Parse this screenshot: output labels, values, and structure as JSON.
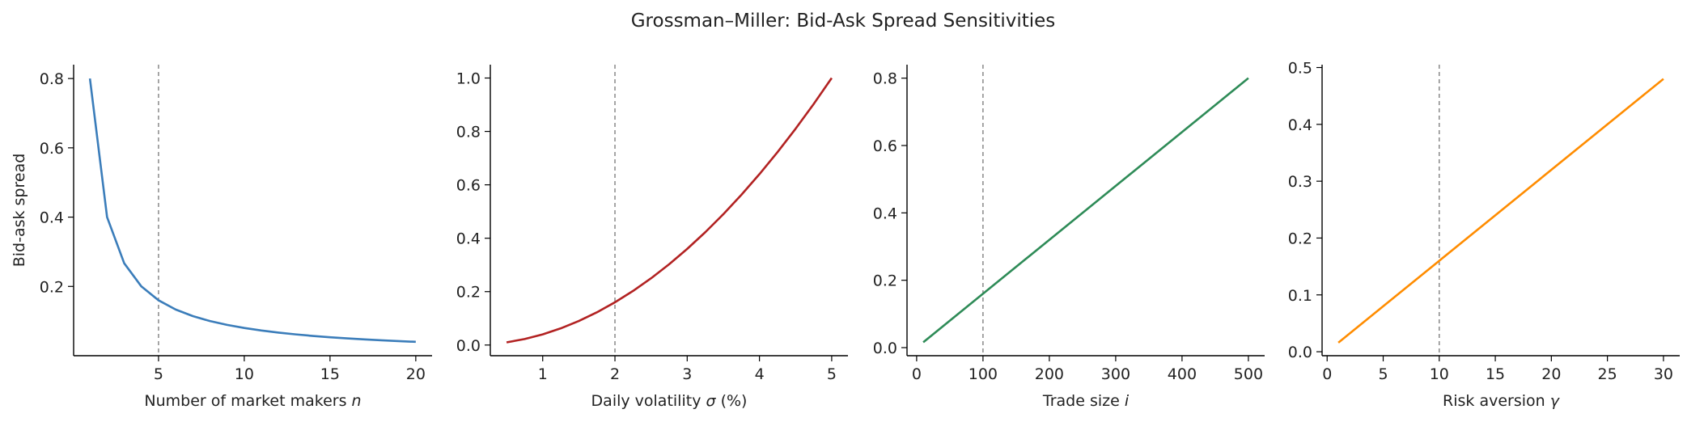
{
  "title": "Grossman–Miller: Bid-Ask Spread Sensitivities",
  "chart_data": [
    {
      "type": "line",
      "xlabel": "Number of market makers ",
      "xlabel_symbol": "n",
      "xlabel_suffix": "",
      "ylabel": "Bid-ask spread",
      "xlim": [
        0.05,
        20.95
      ],
      "ylim": [
        0.0,
        0.84
      ],
      "xticks": [
        5,
        10,
        15,
        20
      ],
      "yticks": [
        0.2,
        0.4,
        0.6,
        0.8
      ],
      "ref_x": 5,
      "color": "#3b7dba",
      "x": [
        1,
        2,
        3,
        4,
        5,
        6,
        7,
        8,
        9,
        10,
        11,
        12,
        13,
        14,
        15,
        16,
        17,
        18,
        19,
        20
      ],
      "y": [
        0.8,
        0.4,
        0.2667,
        0.2,
        0.16,
        0.1333,
        0.1143,
        0.1,
        0.0889,
        0.08,
        0.0727,
        0.0667,
        0.0615,
        0.0571,
        0.0533,
        0.05,
        0.0471,
        0.0444,
        0.0421,
        0.04
      ]
    },
    {
      "type": "line",
      "xlabel": "Daily volatility ",
      "xlabel_symbol": "σ",
      "xlabel_suffix": " (%)",
      "ylabel": "",
      "xlim": [
        0.275,
        5.225
      ],
      "ylim": [
        -0.04,
        1.05
      ],
      "xticks": [
        1,
        2,
        3,
        4,
        5
      ],
      "yticks": [
        0.0,
        0.2,
        0.4,
        0.6,
        0.8,
        1.0
      ],
      "ref_x": 2,
      "color": "#b22222",
      "x": [
        0.5,
        0.75,
        1.0,
        1.25,
        1.5,
        1.75,
        2.0,
        2.25,
        2.5,
        2.75,
        3.0,
        3.25,
        3.5,
        3.75,
        4.0,
        4.25,
        4.5,
        4.75,
        5.0
      ],
      "y": [
        0.01,
        0.0225,
        0.04,
        0.0625,
        0.09,
        0.1225,
        0.16,
        0.2025,
        0.25,
        0.3025,
        0.36,
        0.4225,
        0.49,
        0.5625,
        0.64,
        0.7225,
        0.81,
        0.9025,
        1.0
      ]
    },
    {
      "type": "line",
      "xlabel": "Trade size ",
      "xlabel_symbol": "i",
      "xlabel_suffix": "",
      "ylabel": "",
      "xlim": [
        -14.5,
        524.5
      ],
      "ylim": [
        -0.024,
        0.84
      ],
      "xticks": [
        0,
        100,
        200,
        300,
        400,
        500
      ],
      "yticks": [
        0.0,
        0.2,
        0.4,
        0.6,
        0.8
      ],
      "ref_x": 100,
      "color": "#2e8b57",
      "x": [
        10,
        500
      ],
      "y": [
        0.016,
        0.8
      ]
    },
    {
      "type": "line",
      "xlabel": "Risk aversion ",
      "xlabel_symbol": "γ",
      "xlabel_suffix": "",
      "ylabel": "",
      "xlim": [
        -0.45,
        31.45
      ],
      "ylim": [
        -0.007,
        0.505
      ],
      "xticks": [
        0,
        5,
        10,
        15,
        20,
        25,
        30
      ],
      "yticks": [
        0.0,
        0.1,
        0.2,
        0.3,
        0.4,
        0.5
      ],
      "ref_x": 10,
      "color": "#ff8c00",
      "x": [
        1,
        30
      ],
      "y": [
        0.016,
        0.48
      ]
    }
  ]
}
